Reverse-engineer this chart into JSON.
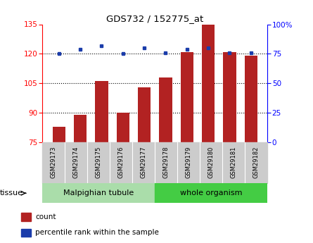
{
  "title": "GDS732 / 152775_at",
  "samples": [
    "GSM29173",
    "GSM29174",
    "GSM29175",
    "GSM29176",
    "GSM29177",
    "GSM29178",
    "GSM29179",
    "GSM29180",
    "GSM29181",
    "GSM29182"
  ],
  "counts": [
    83,
    89,
    106,
    90,
    103,
    108,
    121,
    135,
    121,
    119
  ],
  "percentiles": [
    75,
    79,
    82,
    75,
    80,
    76,
    79,
    80,
    76,
    76
  ],
  "ylim_left": [
    75,
    135
  ],
  "ylim_right": [
    0,
    100
  ],
  "yticks_left": [
    75,
    90,
    105,
    120,
    135
  ],
  "yticks_right": [
    0,
    25,
    50,
    75,
    100
  ],
  "bar_color": "#b22222",
  "dot_color": "#1a3caa",
  "tissue_groups": [
    {
      "label": "Malpighian tubule",
      "start": 0,
      "end": 5,
      "color": "#aaddaa"
    },
    {
      "label": "whole organism",
      "start": 5,
      "end": 10,
      "color": "#44cc44"
    }
  ],
  "tissue_label": "tissue",
  "legend_items": [
    {
      "color": "#b22222",
      "label": "count"
    },
    {
      "color": "#1a3caa",
      "label": "percentile rank within the sample"
    }
  ],
  "tick_bg_color": "#cccccc",
  "grid_yticks": [
    90,
    105,
    120
  ]
}
